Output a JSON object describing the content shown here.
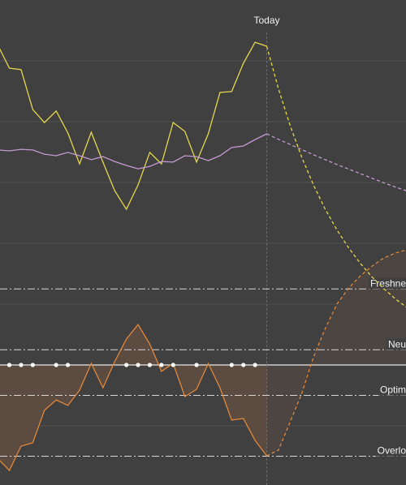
{
  "chart_data": {
    "type": "line",
    "x": [
      -23,
      -22,
      -21,
      -20,
      -19,
      -18,
      -17,
      -16,
      -15,
      -14,
      -13,
      -12,
      -11,
      -10,
      -9,
      -8,
      -7,
      -6,
      -5,
      -4,
      -3,
      -2,
      -1,
      0
    ],
    "xlim": [
      -22.8,
      11.9
    ],
    "ylim": [
      -39.47,
      120
    ],
    "yticks": [
      -20,
      0,
      20,
      40,
      60,
      80,
      100
    ],
    "grid": true,
    "series": [
      {
        "color": "#e6d64c",
        "style": "solid",
        "values": [
          105.3,
          97.6,
          97.1,
          84,
          79.7,
          83.5,
          76.3,
          66.1,
          76.5,
          66.7,
          57.3,
          51.2,
          59.2,
          69.9,
          66.1,
          79.7,
          76.8,
          66.7,
          76,
          89.6,
          89.9,
          99.2,
          106.1,
          104.8
        ]
      },
      {
        "color": "#c49ad2",
        "style": "solid",
        "values": [
          70.7,
          70.4,
          70.9,
          70.7,
          69.3,
          68.8,
          69.9,
          68.8,
          67.5,
          68.5,
          66.9,
          65.6,
          64.5,
          65.3,
          66.9,
          66.7,
          68.8,
          68.5,
          67.2,
          68.8,
          71.5,
          72,
          74.1,
          76
        ]
      },
      {
        "color": "#e2873a",
        "style": "solid",
        "fill": "#5b4b40",
        "values": [
          -30.7,
          -34.7,
          -26.7,
          -25.6,
          -14.9,
          -11.5,
          -13.3,
          -8.3,
          0.5,
          -7.5,
          1.1,
          8.5,
          13.3,
          6.9,
          -2.1,
          0.5,
          -10.4,
          -8,
          0.5,
          -7.5,
          -18.1,
          -17.6,
          -24.8,
          -29.9
        ]
      },
      {
        "color": "#e6d64c",
        "style": "dashed",
        "x": [
          0,
          1,
          2,
          3,
          4,
          5,
          6,
          7,
          8,
          9,
          10,
          11,
          12
        ],
        "values": [
          104.8,
          90.8,
          78.7,
          68.2,
          59.1,
          51.2,
          44.4,
          38.5,
          33.4,
          28.9,
          25.1,
          21.7,
          18.8
        ]
      },
      {
        "color": "#c49ad2",
        "style": "dashed",
        "x": [
          0,
          1,
          2,
          3,
          4,
          5,
          6,
          7,
          8,
          9,
          10,
          11,
          12
        ],
        "values": [
          76,
          74.2,
          72.5,
          70.8,
          69.1,
          67.5,
          65.9,
          64.4,
          62.9,
          61.4,
          59.9,
          58.5,
          57.2
        ]
      },
      {
        "color": "#e2873a",
        "style": "dashed",
        "fill": "#4d4541",
        "x": [
          0,
          1,
          2,
          3,
          4,
          5,
          6,
          7,
          8,
          9,
          10,
          11,
          12
        ],
        "values": [
          -29.9,
          -28,
          -18.7,
          -9.3,
          2.7,
          12,
          20,
          25.3,
          29.3,
          32.5,
          35.2,
          36.8,
          37.9
        ]
      }
    ],
    "reference_lines": [
      {
        "label": "Freshne",
        "value": 25
      },
      {
        "label": "Neu",
        "value": 5
      },
      {
        "label": "Optim",
        "value": -10
      },
      {
        "label": "Overlo",
        "value": -30
      }
    ],
    "markers": {
      "color": "#ffffff",
      "x": [
        -22,
        -21,
        -20,
        -18,
        -17,
        -12,
        -11,
        -10,
        -9,
        -8,
        -6,
        -3,
        -2,
        -1
      ]
    },
    "annotations": [
      {
        "text": "Today",
        "x": 0
      }
    ]
  }
}
